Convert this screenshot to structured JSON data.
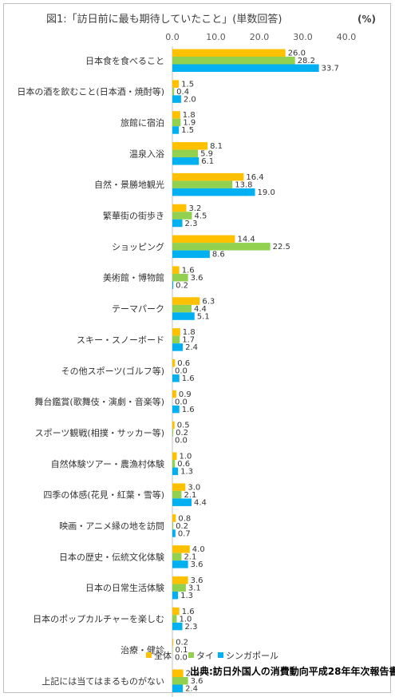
{
  "chart_data": {
    "type": "bar",
    "orientation": "horizontal",
    "title": "図1:「訪日前に最も期待していたこと」(単数回答)",
    "unit": "(%)",
    "xlim": [
      0,
      40
    ],
    "ticks": [
      "0.0",
      "10.0",
      "20.0",
      "30.0",
      "40.0"
    ],
    "grid": false,
    "legend_position": "bottom",
    "source": "出典:訪日外国人の消費動向平成28年年次報告書",
    "categories": [
      "日本食を食べること",
      "日本の酒を飲むこと(日本酒・焼酎等)",
      "旅館に宿泊",
      "温泉入浴",
      "自然・景勝地観光",
      "繁華街の街歩き",
      "ショッピング",
      "美術館・博物館",
      "テーマパーク",
      "スキー・スノーボード",
      "その他スポーツ(ゴルフ等)",
      "舞台鑑賞(歌舞伎・演劇・音楽等)",
      "スポーツ観戦(相撲・サッカー等)",
      "自然体験ツアー・農漁村体験",
      "四季の体感(花見・紅葉・雪等)",
      "映画・アニメ縁の地を訪問",
      "日本の歴史・伝統文化体験",
      "日本の日常生活体験",
      "日本のポップカルチャーを楽しむ",
      "治療・健診",
      "上記には当てはまるものがない"
    ],
    "series": [
      {
        "name": "全体",
        "color": "#FFC000",
        "values": [
          26.0,
          1.5,
          1.8,
          8.1,
          16.4,
          3.2,
          14.4,
          1.6,
          6.3,
          1.8,
          0.6,
          0.9,
          0.5,
          1.0,
          3.0,
          0.8,
          4.0,
          3.6,
          1.6,
          0.2,
          2.5
        ],
        "labels": [
          "26.0",
          "1.5",
          "1.8",
          "8.1",
          "16.4",
          "3.2",
          "14.4",
          "1.6",
          "6.3",
          "1.8",
          "0.6",
          "0.9",
          "0.5",
          "1.0",
          "3.0",
          "0.8",
          "4.0",
          "3.6",
          "1.6",
          "0.2",
          "2.5"
        ]
      },
      {
        "name": "タイ",
        "color": "#92D050",
        "values": [
          28.2,
          0.4,
          1.9,
          5.9,
          13.8,
          4.5,
          22.5,
          3.6,
          4.4,
          1.7,
          0.0,
          0.0,
          0.2,
          0.6,
          2.1,
          0.2,
          2.1,
          3.1,
          1.0,
          0.1,
          3.6
        ],
        "labels": [
          "28.2",
          "0.4",
          "1.9",
          "5.9",
          "13.8",
          "4.5",
          "22.5",
          "3.6",
          "4.4",
          "1.7",
          "0.0",
          "0.0",
          "0.2",
          "0.6",
          "2.1",
          "0.2",
          "2.1",
          "3.1",
          "1.0",
          "0.1",
          "3.6"
        ]
      },
      {
        "name": "シンガポール",
        "color": "#00B0F0",
        "values": [
          33.7,
          2.0,
          1.5,
          6.1,
          19.0,
          2.3,
          8.6,
          0.2,
          5.1,
          2.4,
          1.6,
          1.6,
          0.0,
          1.3,
          4.4,
          0.7,
          3.6,
          1.3,
          2.3,
          0.0,
          2.4
        ],
        "labels": [
          "33.7",
          "2.0",
          "1.5",
          "6.1",
          "19.0",
          "2.3",
          "8.6",
          "0.2",
          "5.1",
          "2.4",
          "1.6",
          "1.6",
          "0.0",
          "1.3",
          "4.4",
          "0.7",
          "3.6",
          "1.3",
          "2.3",
          "0.0",
          "2.4"
        ]
      }
    ]
  }
}
